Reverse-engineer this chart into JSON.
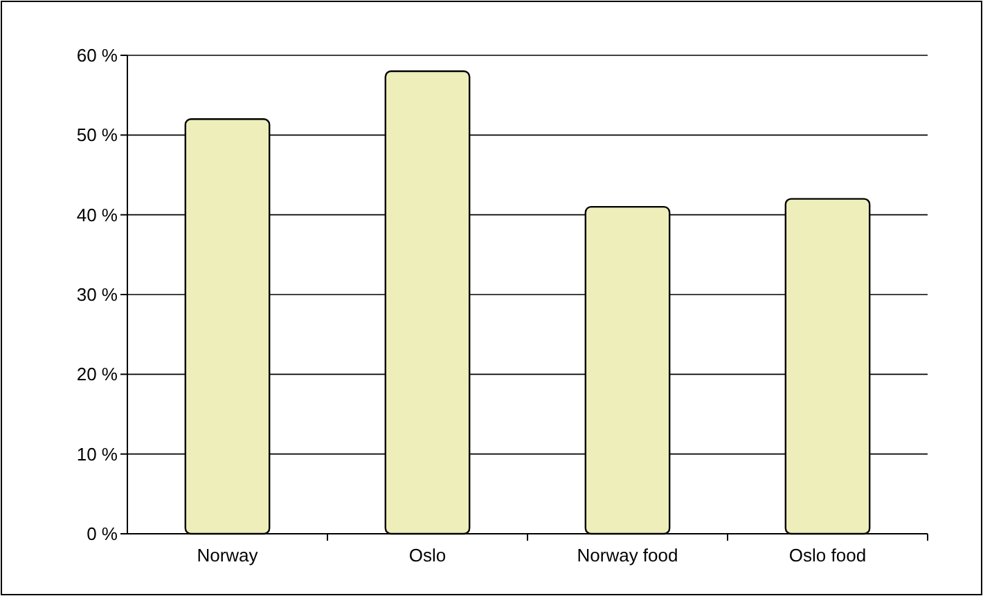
{
  "chart_data": {
    "type": "bar",
    "categories": [
      "Norway",
      "Oslo",
      "Norway food",
      "Oslo food"
    ],
    "values": [
      52,
      58,
      41,
      42
    ],
    "color": "#eeeebb",
    "ylim": [
      0,
      60
    ],
    "yticks": [
      {
        "value": 0,
        "label": "0 %"
      },
      {
        "value": 10,
        "label": "10 %"
      },
      {
        "value": 20,
        "label": "20 %"
      },
      {
        "value": 30,
        "label": "30 %"
      },
      {
        "value": 40,
        "label": "40 %"
      },
      {
        "value": 50,
        "label": "50 %"
      },
      {
        "value": 60,
        "label": "60 %"
      }
    ],
    "grid": "y"
  }
}
